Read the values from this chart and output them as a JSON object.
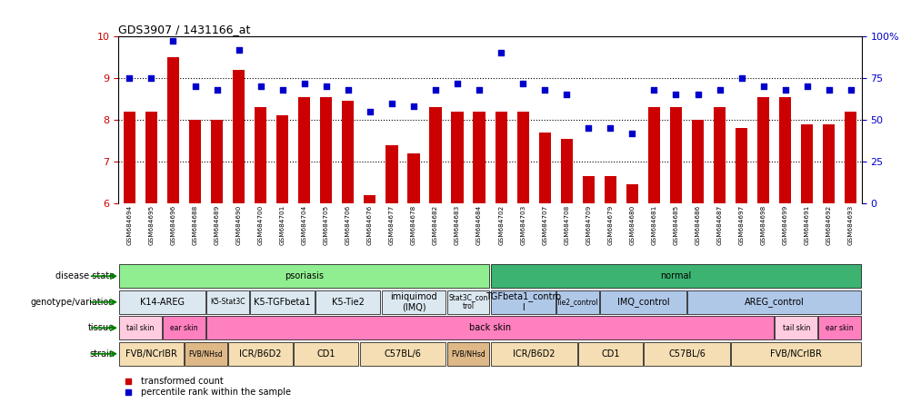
{
  "title": "GDS3907 / 1431166_at",
  "samples": [
    "GSM684694",
    "GSM684695",
    "GSM684696",
    "GSM684688",
    "GSM684689",
    "GSM684690",
    "GSM684700",
    "GSM684701",
    "GSM684704",
    "GSM684705",
    "GSM684706",
    "GSM684676",
    "GSM684677",
    "GSM684678",
    "GSM684682",
    "GSM684683",
    "GSM684684",
    "GSM684702",
    "GSM684703",
    "GSM684707",
    "GSM684708",
    "GSM684709",
    "GSM684679",
    "GSM684680",
    "GSM684681",
    "GSM684685",
    "GSM684686",
    "GSM684687",
    "GSM684697",
    "GSM684698",
    "GSM684699",
    "GSM684691",
    "GSM684692",
    "GSM684693"
  ],
  "bar_values": [
    8.2,
    8.2,
    9.5,
    8.0,
    8.0,
    9.2,
    8.3,
    8.1,
    8.55,
    8.55,
    8.45,
    6.2,
    7.4,
    7.2,
    8.3,
    8.2,
    8.2,
    8.2,
    8.2,
    7.7,
    7.55,
    6.65,
    6.65,
    6.45,
    8.3,
    8.3,
    8.0,
    8.3,
    7.8,
    8.55,
    8.55,
    7.9,
    7.9,
    8.2
  ],
  "dot_values": [
    75,
    75,
    97,
    70,
    68,
    92,
    70,
    68,
    72,
    70,
    68,
    55,
    60,
    58,
    68,
    72,
    68,
    90,
    72,
    68,
    65,
    45,
    45,
    42,
    68,
    65,
    65,
    68,
    75,
    70,
    68,
    70,
    68,
    68
  ],
  "ylim_left": [
    6,
    10
  ],
  "ylim_right": [
    0,
    100
  ],
  "yticks_left": [
    6,
    7,
    8,
    9,
    10
  ],
  "yticks_right": [
    0,
    25,
    50,
    75,
    100
  ],
  "bar_color": "#cc0000",
  "dot_color": "#0000cc",
  "row_labels": [
    "disease state",
    "genotype/variation",
    "tissue",
    "strain"
  ],
  "disease_state_groups": [
    {
      "label": "psoriasis",
      "start": 0,
      "end": 17,
      "color": "#90ee90"
    },
    {
      "label": "normal",
      "start": 17,
      "end": 34,
      "color": "#3cb371"
    }
  ],
  "genotype_groups": [
    {
      "label": "K14-AREG",
      "start": 0,
      "end": 4,
      "color": "#dce8f0"
    },
    {
      "label": "K5-Stat3C",
      "start": 4,
      "end": 6,
      "color": "#dce8f0"
    },
    {
      "label": "K5-TGFbeta1",
      "start": 6,
      "end": 9,
      "color": "#dce8f0"
    },
    {
      "label": "K5-Tie2",
      "start": 9,
      "end": 12,
      "color": "#dce8f0"
    },
    {
      "label": "imiquimod\n(IMQ)",
      "start": 12,
      "end": 15,
      "color": "#dce8f0"
    },
    {
      "label": "Stat3C_con\ntrol",
      "start": 15,
      "end": 17,
      "color": "#dce8f0"
    },
    {
      "label": "TGFbeta1_contro\nl",
      "start": 17,
      "end": 20,
      "color": "#b0c8e8"
    },
    {
      "label": "Tie2_control",
      "start": 20,
      "end": 22,
      "color": "#b0c8e8"
    },
    {
      "label": "IMQ_control",
      "start": 22,
      "end": 26,
      "color": "#b0c8e8"
    },
    {
      "label": "AREG_control",
      "start": 26,
      "end": 34,
      "color": "#b0c8e8"
    }
  ],
  "tissue_groups": [
    {
      "label": "tail skin",
      "start": 0,
      "end": 2,
      "color": "#ffcce0"
    },
    {
      "label": "ear skin",
      "start": 2,
      "end": 4,
      "color": "#ff80bf"
    },
    {
      "label": "back skin",
      "start": 4,
      "end": 30,
      "color": "#ff80bf"
    },
    {
      "label": "tail skin",
      "start": 30,
      "end": 32,
      "color": "#ffcce0"
    },
    {
      "label": "ear skin",
      "start": 32,
      "end": 34,
      "color": "#ff80bf"
    }
  ],
  "strain_groups": [
    {
      "label": "FVB/NCrIBR",
      "start": 0,
      "end": 3,
      "color": "#f5deb3"
    },
    {
      "label": "FVB/NHsd",
      "start": 3,
      "end": 5,
      "color": "#deb887"
    },
    {
      "label": "ICR/B6D2",
      "start": 5,
      "end": 8,
      "color": "#f5deb3"
    },
    {
      "label": "CD1",
      "start": 8,
      "end": 11,
      "color": "#f5deb3"
    },
    {
      "label": "C57BL/6",
      "start": 11,
      "end": 15,
      "color": "#f5deb3"
    },
    {
      "label": "FVB/NHsd",
      "start": 15,
      "end": 17,
      "color": "#deb887"
    },
    {
      "label": "ICR/B6D2",
      "start": 17,
      "end": 21,
      "color": "#f5deb3"
    },
    {
      "label": "CD1",
      "start": 21,
      "end": 24,
      "color": "#f5deb3"
    },
    {
      "label": "C57BL/6",
      "start": 24,
      "end": 28,
      "color": "#f5deb3"
    },
    {
      "label": "FVB/NCrIBR",
      "start": 28,
      "end": 34,
      "color": "#f5deb3"
    }
  ]
}
